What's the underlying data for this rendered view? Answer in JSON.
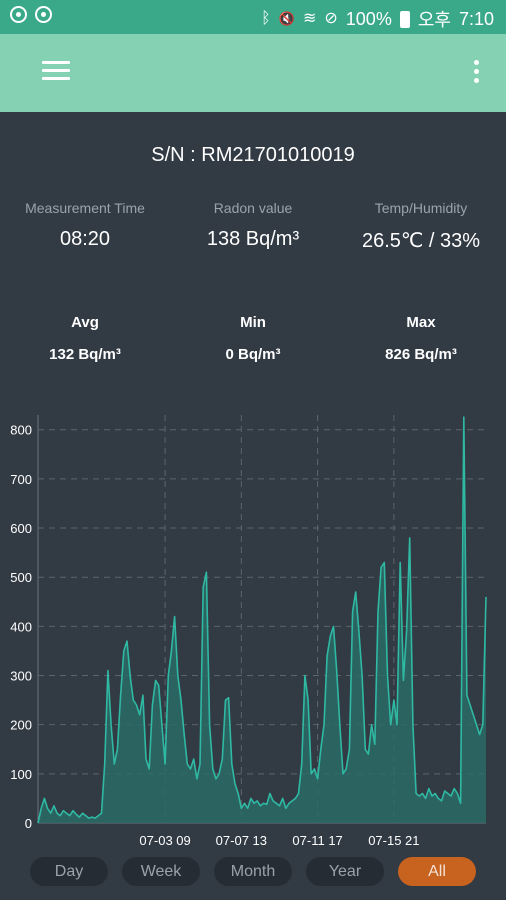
{
  "status_bar": {
    "battery": "100%",
    "ampm": "오후",
    "time": "7:10",
    "bluetooth_icon": "ᛒ",
    "mute_icon": "🔇",
    "wifi_icon": "≋",
    "dnd_icon": "⊘"
  },
  "device": {
    "serial": "S/N : RM21701010019"
  },
  "current": {
    "time_label": "Measurement Time",
    "time_value": "08:20",
    "radon_label": "Radon value",
    "radon_value": "138 Bq/m³",
    "temp_label": "Temp/Humidity",
    "temp_value": "26.5℃ / 33%"
  },
  "stats": {
    "avg_label": "Avg",
    "avg_value": "132 Bq/m³",
    "min_label": "Min",
    "min_value": "0 Bq/m³",
    "max_label": "Max",
    "max_value": "826 Bq/m³"
  },
  "chart_data": {
    "type": "area",
    "ylim": [
      0,
      830
    ],
    "y_ticks": [
      0,
      100,
      200,
      300,
      400,
      500,
      600,
      700,
      800
    ],
    "x_tick_labels": [
      "07-03 09",
      "07-07 13",
      "07-11 17",
      "07-15 21"
    ],
    "x_tick_index": [
      40,
      64,
      88,
      112
    ],
    "grid": true,
    "line_color": "#2fb9a3",
    "fill_color": "#2a6b66",
    "values": [
      0,
      30,
      50,
      30,
      20,
      35,
      20,
      15,
      25,
      20,
      15,
      25,
      18,
      12,
      20,
      15,
      10,
      12,
      10,
      15,
      20,
      120,
      310,
      200,
      120,
      150,
      260,
      350,
      370,
      300,
      250,
      240,
      220,
      260,
      130,
      110,
      240,
      290,
      280,
      200,
      120,
      300,
      350,
      420,
      300,
      250,
      180,
      120,
      110,
      130,
      90,
      120,
      480,
      510,
      200,
      110,
      90,
      100,
      130,
      250,
      255,
      120,
      80,
      60,
      30,
      40,
      30,
      50,
      40,
      45,
      35,
      40,
      38,
      60,
      45,
      40,
      35,
      50,
      30,
      40,
      45,
      50,
      60,
      120,
      300,
      250,
      100,
      110,
      90,
      150,
      200,
      340,
      380,
      400,
      310,
      200,
      100,
      110,
      150,
      430,
      470,
      390,
      300,
      150,
      140,
      200,
      160,
      430,
      520,
      530,
      300,
      200,
      250,
      200,
      530,
      290,
      390,
      580,
      200,
      60,
      55,
      60,
      50,
      70,
      55,
      60,
      50,
      45,
      65,
      60,
      55,
      70,
      60,
      40,
      826,
      260,
      240,
      220,
      200,
      180,
      200,
      460
    ]
  },
  "range_buttons": [
    "Day",
    "Week",
    "Month",
    "Year",
    "All"
  ],
  "range_active": 4
}
